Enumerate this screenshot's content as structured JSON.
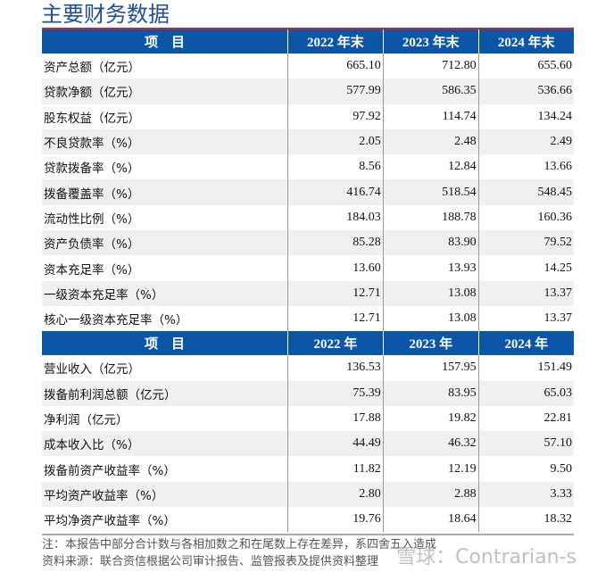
{
  "title": "主要财务数据",
  "section1": {
    "header": [
      "项　目",
      "2022 年末",
      "2023 年末",
      "2024 年末"
    ],
    "rows": [
      [
        "资产总额（亿元）",
        "665.10",
        "712.80",
        "655.60"
      ],
      [
        "贷款净额（亿元）",
        "577.99",
        "586.35",
        "536.66"
      ],
      [
        "股东权益（亿元）",
        "97.92",
        "114.74",
        "134.24"
      ],
      [
        "不良贷款率（%）",
        "2.05",
        "2.48",
        "2.49"
      ],
      [
        "贷款拨备率（%）",
        "8.56",
        "12.84",
        "13.66"
      ],
      [
        "拨备覆盖率（%）",
        "416.74",
        "518.54",
        "548.45"
      ],
      [
        "流动性比例（%）",
        "184.03",
        "188.78",
        "160.36"
      ],
      [
        "资产负债率（%）",
        "85.28",
        "83.90",
        "79.52"
      ],
      [
        "资本充足率（%）",
        "13.60",
        "13.93",
        "14.25"
      ],
      [
        "一级资本充足率（%）",
        "12.71",
        "13.08",
        "13.37"
      ],
      [
        "核心一级资本充足率（%）",
        "12.71",
        "13.08",
        "13.37"
      ]
    ]
  },
  "section2": {
    "header": [
      "项　目",
      "2022 年",
      "2023 年",
      "2024 年"
    ],
    "rows": [
      [
        "营业收入（亿元）",
        "136.53",
        "157.95",
        "151.49"
      ],
      [
        "拨备前利润总额（亿元）",
        "75.39",
        "83.95",
        "65.03"
      ],
      [
        "净利润（亿元）",
        "17.88",
        "19.82",
        "22.81"
      ],
      [
        "成本收入比（%）",
        "44.49",
        "46.32",
        "57.10"
      ],
      [
        "拨备前资产收益率（%）",
        "11.82",
        "12.19",
        "9.50"
      ],
      [
        "平均资产收益率（%）",
        "2.80",
        "2.88",
        "3.33"
      ],
      [
        "平均净资产收益率（%）",
        "19.76",
        "18.64",
        "18.32"
      ]
    ]
  },
  "notes": [
    "注：本报告中部分合计数与各相加数之和在尾数上存在差异，系四舍五入造成",
    "资料来源：联合资信根据公司审计报告、监管报表及提供资料整理"
  ],
  "watermark": "雪球：Contrarian-s",
  "colors": {
    "header_bg": "#0c56a8",
    "title": "#1f4e9c",
    "accent_line": "#d0202a"
  }
}
